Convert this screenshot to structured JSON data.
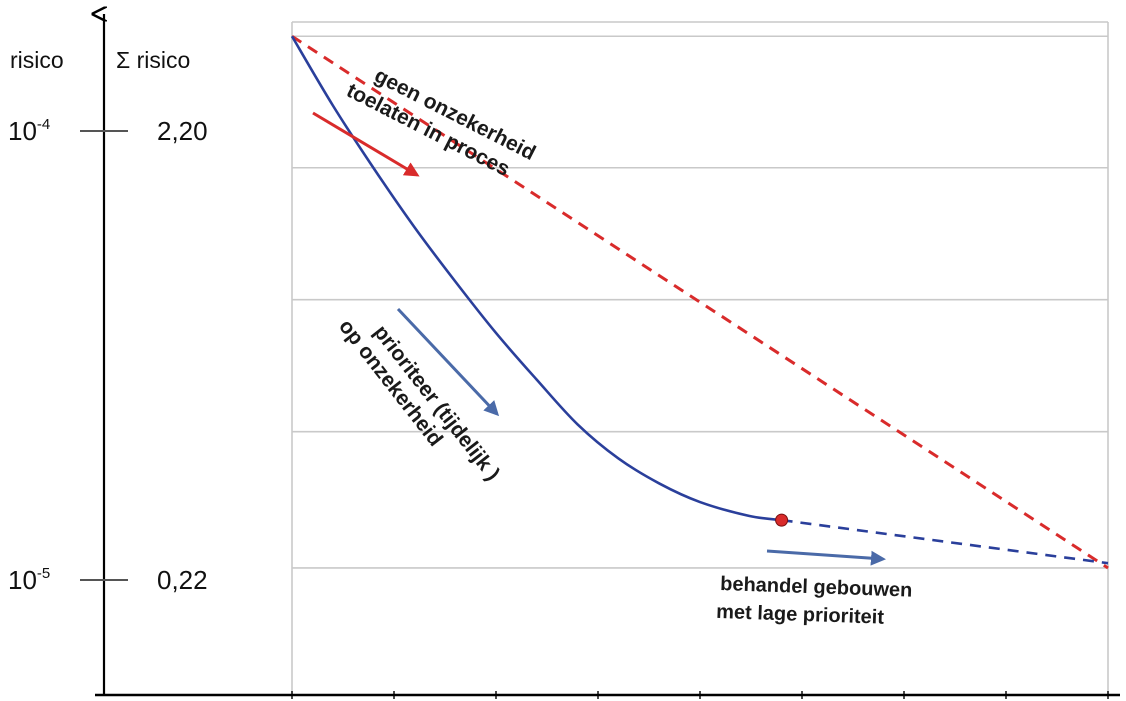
{
  "chart_data": {
    "type": "line",
    "y_axis_left_label": "risico",
    "y_axis_right_label": "Σ risico",
    "y_ticks": [
      {
        "risk_base": "10",
        "risk_exp": "-4",
        "sum": "2,20",
        "value": 1.0
      },
      {
        "risk_base": "10",
        "risk_exp": "-5",
        "sum": "0,22",
        "value": 0.0
      }
    ],
    "x_range": [
      0,
      1
    ],
    "y_range": [
      -0.2389,
      1.0268
    ],
    "grid_lines_y": [
      1.0268,
      1.0,
      0.7527,
      0.5045,
      0.2563,
      0.0
    ],
    "grid_lines_x": [
      0.0,
      1.0
    ],
    "series": [
      {
        "color": "#d92b2b",
        "dash": true,
        "points": [
          {
            "x": 0.0,
            "y": 1.0
          },
          {
            "x": 1.0,
            "y": 0.0
          }
        ]
      },
      {
        "color": "#2a3f9b",
        "dash": false,
        "points": [
          {
            "x": 0.0,
            "y": 1.0
          },
          {
            "x": 0.05,
            "y": 0.87
          },
          {
            "x": 0.1,
            "y": 0.752
          },
          {
            "x": 0.15,
            "y": 0.641
          },
          {
            "x": 0.2,
            "y": 0.539
          },
          {
            "x": 0.25,
            "y": 0.442
          },
          {
            "x": 0.3,
            "y": 0.354
          },
          {
            "x": 0.35,
            "y": 0.27
          },
          {
            "x": 0.4,
            "y": 0.206
          },
          {
            "x": 0.45,
            "y": 0.159
          },
          {
            "x": 0.5,
            "y": 0.124
          },
          {
            "x": 0.56,
            "y": 0.098
          },
          {
            "x": 0.6,
            "y": 0.09
          }
        ]
      },
      {
        "color": "#2a3f9b",
        "dash": true,
        "points": [
          {
            "x": 0.6,
            "y": 0.09
          },
          {
            "x": 1.0,
            "y": 0.009
          }
        ]
      }
    ],
    "marker": {
      "x": 0.6,
      "y": 0.09,
      "color": "#d92b2b"
    },
    "annotations": [
      {
        "lines": [
          "geen onzekerheid",
          "toelaten in proces"
        ],
        "color_arrow": "#d92b2b"
      },
      {
        "lines": [
          "prioriteer (tijdelijk )",
          "op onzekerheid"
        ],
        "color_arrow": "#4a6aa8"
      },
      {
        "lines": [
          "behandel gebouwen",
          "met lage prioriteit"
        ],
        "color_arrow": "#4a6aa8"
      }
    ]
  }
}
